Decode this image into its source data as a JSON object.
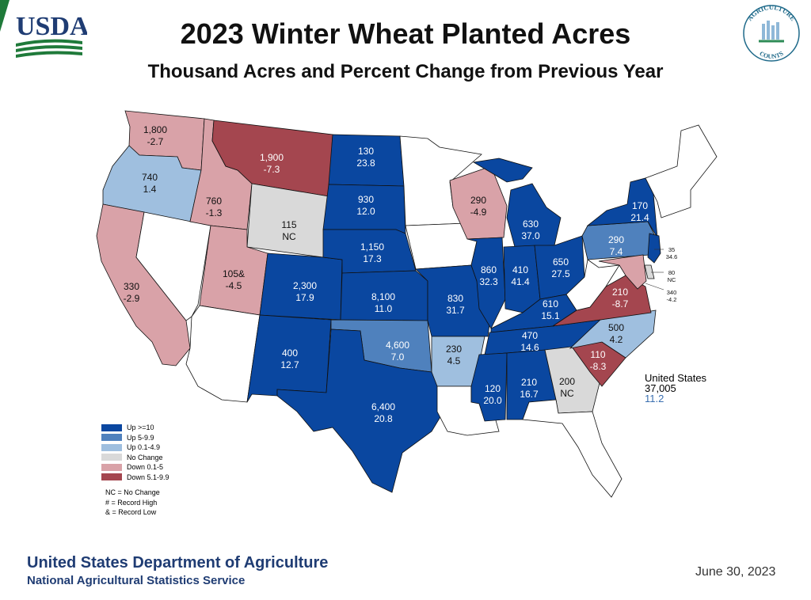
{
  "header": {
    "title": "2023 Winter Wheat Planted Acres",
    "subtitle": "Thousand Acres and Percent Change from Previous Year",
    "usda_logo_text": "USDA",
    "ag_logo_text_top": "AGRICULTURE",
    "ag_logo_text_bottom": "COUNTS"
  },
  "colors": {
    "up_10": "#0a47a0",
    "up_5": "#4f81bd",
    "up_0": "#9fbfdf",
    "nc": "#d9d9d9",
    "down_0": "#d9a2a8",
    "down_5": "#a4464f",
    "none": "#ffffff",
    "outline": "#111111"
  },
  "legend": {
    "items": [
      {
        "label": "Up >=10",
        "color": "#0a47a0"
      },
      {
        "label": "Up 5-9.9",
        "color": "#4f81bd"
      },
      {
        "label": "Up 0.1-4.9",
        "color": "#9fbfdf"
      },
      {
        "label": "No Change",
        "color": "#d9d9d9"
      },
      {
        "label": "Down 0.1-5",
        "color": "#d9a2a8"
      },
      {
        "label": "Down 5.1-9.9",
        "color": "#a4464f"
      }
    ],
    "notes": [
      "NC = No Change",
      "# = Record High",
      "& = Record Low"
    ]
  },
  "states": [
    {
      "id": "WA",
      "acres": "1,800",
      "change": "-2.7",
      "cls": "down_0"
    },
    {
      "id": "OR",
      "acres": "740",
      "change": "1.4",
      "cls": "up_0"
    },
    {
      "id": "CA",
      "acres": "330",
      "change": "-2.9",
      "cls": "down_0"
    },
    {
      "id": "ID",
      "acres": "760",
      "change": "-1.3",
      "cls": "down_0"
    },
    {
      "id": "MT",
      "acres": "1,900",
      "change": "-7.3",
      "cls": "down_5"
    },
    {
      "id": "WY",
      "acres": "115",
      "change": "NC",
      "cls": "nc"
    },
    {
      "id": "UT",
      "acres": "105&",
      "change": "-4.5",
      "cls": "down_0"
    },
    {
      "id": "CO",
      "acres": "2,300",
      "change": "17.9",
      "cls": "up_10"
    },
    {
      "id": "NM",
      "acres": "400",
      "change": "12.7",
      "cls": "up_10"
    },
    {
      "id": "ND",
      "acres": "130",
      "change": "23.8",
      "cls": "up_10"
    },
    {
      "id": "SD",
      "acres": "930",
      "change": "12.0",
      "cls": "up_10"
    },
    {
      "id": "NE",
      "acres": "1,150",
      "change": "17.3",
      "cls": "up_10"
    },
    {
      "id": "KS",
      "acres": "8,100",
      "change": "11.0",
      "cls": "up_10"
    },
    {
      "id": "OK",
      "acres": "4,600",
      "change": "7.0",
      "cls": "up_5"
    },
    {
      "id": "TX",
      "acres": "6,400",
      "change": "20.8",
      "cls": "up_10"
    },
    {
      "id": "WI",
      "acres": "290",
      "change": "-4.9",
      "cls": "down_0"
    },
    {
      "id": "MO",
      "acres": "830",
      "change": "31.7",
      "cls": "up_10"
    },
    {
      "id": "AR",
      "acres": "230",
      "change": "4.5",
      "cls": "up_0"
    },
    {
      "id": "MI",
      "acres": "630",
      "change": "37.0",
      "cls": "up_10"
    },
    {
      "id": "IL",
      "acres": "860",
      "change": "32.3",
      "cls": "up_10"
    },
    {
      "id": "IN",
      "acres": "410",
      "change": "41.4",
      "cls": "up_10"
    },
    {
      "id": "OH",
      "acres": "650",
      "change": "27.5",
      "cls": "up_10"
    },
    {
      "id": "KY",
      "acres": "610",
      "change": "15.1",
      "cls": "up_10"
    },
    {
      "id": "TN",
      "acres": "470",
      "change": "14.6",
      "cls": "up_10"
    },
    {
      "id": "MS",
      "acres": "120",
      "change": "20.0",
      "cls": "up_10"
    },
    {
      "id": "AL",
      "acres": "210",
      "change": "16.7",
      "cls": "up_10"
    },
    {
      "id": "GA",
      "acres": "200",
      "change": "NC",
      "cls": "nc"
    },
    {
      "id": "SC",
      "acres": "110",
      "change": "-8.3",
      "cls": "down_5"
    },
    {
      "id": "NC",
      "acres": "500",
      "change": "4.2",
      "cls": "up_0"
    },
    {
      "id": "VA",
      "acres": "210",
      "change": "-8.7",
      "cls": "down_5"
    },
    {
      "id": "PA",
      "acres": "290",
      "change": "7.4",
      "cls": "up_5"
    },
    {
      "id": "NY",
      "acres": "170",
      "change": "21.4",
      "cls": "up_10"
    },
    {
      "id": "NJ",
      "acres": "35",
      "change": "34.6",
      "cls": "up_10"
    },
    {
      "id": "DE",
      "acres": "80",
      "change": "NC",
      "cls": "nc"
    },
    {
      "id": "MD",
      "acres": "340",
      "change": "-4.2",
      "cls": "down_0"
    }
  ],
  "total": {
    "name": "United States",
    "acres": "37,005",
    "change": "11.2"
  },
  "footer": {
    "org": "United States Department of Agriculture",
    "agency": "National Agricultural Statistics Service",
    "date": "June 30, 2023"
  }
}
